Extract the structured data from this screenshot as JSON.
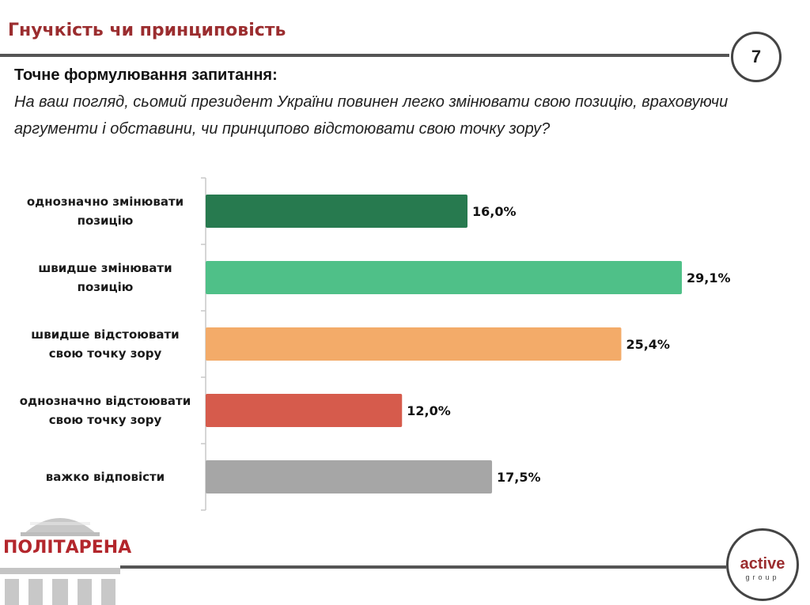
{
  "header": {
    "title": "Гнучкість чи принциповість",
    "page_number": "7"
  },
  "question": {
    "heading": "Точне формулювання запитання:",
    "text": "На ваш погляд, сьомий президент України повинен легко змінювати свою позицію, враховуючи аргументи і обставини, чи принципово відстоювати свою точку зору?"
  },
  "chart_data": {
    "type": "bar",
    "orientation": "horizontal",
    "categories": [
      [
        "однозначно змінювати",
        "позицію"
      ],
      [
        "швидше змінювати",
        "позицію"
      ],
      [
        "швидше відстоювати",
        "свою точку зору"
      ],
      [
        "однозначно відстоювати",
        "свою точку зору"
      ],
      [
        "важко відповісти"
      ]
    ],
    "values": [
      16.0,
      29.1,
      25.4,
      12.0,
      17.5
    ],
    "value_labels": [
      "16,0%",
      "29,1%",
      "25,4%",
      "12,0%",
      "17,5%"
    ],
    "colors": [
      "#277a4f",
      "#4fc088",
      "#f3ab69",
      "#d65b4c",
      "#a6a6a6"
    ],
    "xlim": [
      0,
      29.1
    ],
    "unit": "%",
    "grid": false,
    "title": "",
    "xlabel": "",
    "ylabel": ""
  },
  "logo": {
    "name": "ПОЛІТАРЕНА"
  },
  "brand": {
    "main": "active",
    "sub": "group"
  }
}
